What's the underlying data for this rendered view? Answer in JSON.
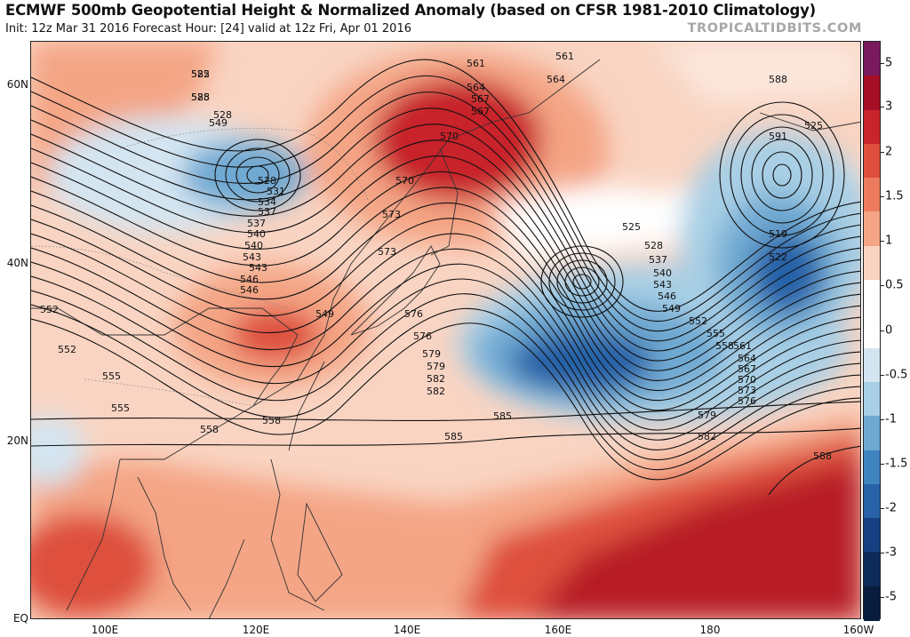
{
  "header": {
    "title": "ECMWF 500mb Geopotential Height & Normalized Anomaly (based on CFSR 1981-2010 Climatology)",
    "subtitle": "Init: 12z Mar 31 2016   Forecast Hour: [24]   valid at 12z Fri, Apr 01 2016",
    "brand": "TROPICALTIDBITS.COM"
  },
  "axes": {
    "lat_labels": [
      "60N",
      "40N",
      "20N",
      "EQ"
    ],
    "lon_labels": [
      "100E",
      "120E",
      "140E",
      "160E",
      "180",
      "160W"
    ]
  },
  "colorbar": {
    "labels": [
      "5",
      "3",
      "2",
      "1.5",
      "1",
      "0.5",
      "0",
      "-0.5",
      "-1",
      "-1.5",
      "-2",
      "-3",
      "-5"
    ],
    "colors": [
      "#7a1a5e",
      "#a50f26",
      "#c8242b",
      "#de4f3e",
      "#ec7b5e",
      "#f4a585",
      "#fad3c1",
      "#ffffff",
      "#ffffff",
      "#d3e5f1",
      "#a8cfe5",
      "#6fa9d2",
      "#3f83bf",
      "#2762a7",
      "#153f80",
      "#0d2b58",
      "#081d3e"
    ]
  },
  "map": {
    "contour_labels": [
      "522",
      "525",
      "528",
      "528",
      "531",
      "534",
      "537",
      "537",
      "540",
      "540",
      "543",
      "543",
      "546",
      "546",
      "549",
      "549",
      "552",
      "552",
      "555",
      "555",
      "558",
      "558",
      "561",
      "561",
      "564",
      "564",
      "567",
      "567",
      "570",
      "570",
      "573",
      "573",
      "576",
      "576",
      "579",
      "579",
      "582",
      "582",
      "585",
      "585",
      "588",
      "588",
      "591",
      "519",
      "522",
      "525",
      "525",
      "528",
      "537",
      "540",
      "543",
      "546",
      "549",
      "552",
      "555",
      "558",
      "561",
      "564",
      "567",
      "570",
      "573",
      "576",
      "579",
      "582",
      "585",
      "588"
    ]
  },
  "colors": {
    "strong_positive": "#c8242b",
    "positive": "#f4a585",
    "negative": "#6fa9d2",
    "strong_negative": "#2762a7"
  }
}
